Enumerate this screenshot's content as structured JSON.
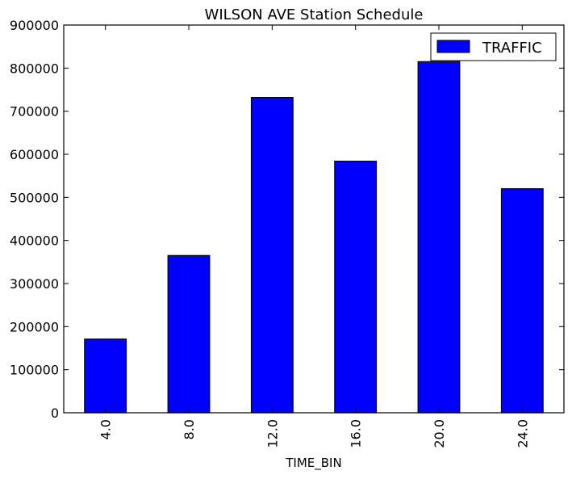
{
  "chart_data": {
    "type": "bar",
    "title": "WILSON AVE Station Schedule",
    "xlabel": "TIME_BIN",
    "ylabel": "",
    "categories": [
      "4.0",
      "8.0",
      "12.0",
      "16.0",
      "20.0",
      "24.0"
    ],
    "series": [
      {
        "name": "TRAFFIC",
        "values": [
          171000,
          365000,
          732000,
          584000,
          815000,
          520000
        ],
        "color": "#0000ff"
      }
    ],
    "ylim": [
      0,
      900000
    ],
    "yticks": [
      0,
      100000,
      200000,
      300000,
      400000,
      500000,
      600000,
      700000,
      800000,
      900000
    ],
    "ytick_labels": [
      "0",
      "100000",
      "200000",
      "300000",
      "400000",
      "500000",
      "600000",
      "700000",
      "800000",
      "900000"
    ],
    "grid": false,
    "legend_position": "top-right",
    "x_tick_rotation": "vertical"
  }
}
